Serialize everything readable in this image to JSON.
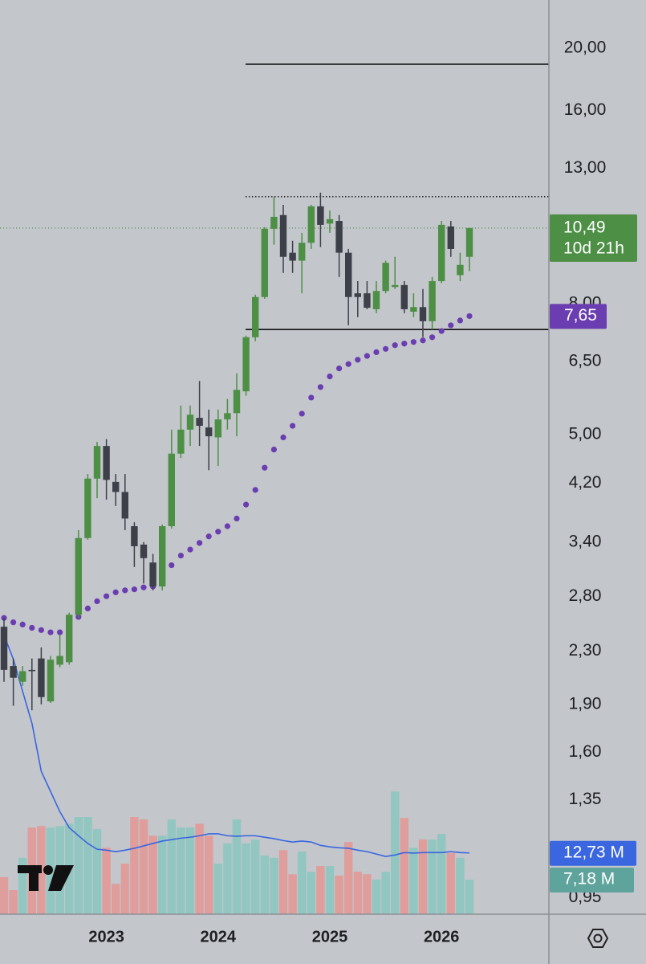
{
  "chart_data": {
    "type": "candlestick",
    "categories": [
      null,
      null,
      null,
      null,
      null,
      null,
      null,
      null,
      null,
      null,
      null,
      "2023",
      null,
      null,
      null,
      null,
      null,
      null,
      null,
      null,
      null,
      null,
      null,
      "2024",
      null,
      null,
      null,
      null,
      null,
      null,
      null,
      null,
      null,
      null,
      null,
      "2025",
      null,
      null,
      null,
      null,
      null,
      null,
      null,
      null,
      null,
      null,
      null,
      "2026",
      null,
      null,
      null
    ],
    "open": [
      2.51,
      2.18,
      2.06,
      2.15,
      2.24,
      1.92,
      2.19,
      2.21,
      2.62,
      3.45,
      4.27,
      4.8,
      4.22,
      4.07,
      3.6,
      3.37,
      3.16,
      2.9,
      3.6,
      4.67,
      5.09,
      5.31,
      5.13,
      4.95,
      5.28,
      5.4,
      5.84,
      7.09,
      8.19,
      10.46,
      10.99,
      9.6,
      9.33,
      9.95,
      11.34,
      10.66,
      10.76,
      9.6,
      8.3,
      8.3,
      7.84,
      8.37,
      8.49,
      8.55,
      7.77,
      7.9,
      7.51,
      8.67,
      10.55,
      8.86,
      9.46
    ],
    "high": [
      2.59,
      2.24,
      2.18,
      2.24,
      2.33,
      2.26,
      2.44,
      2.64,
      3.55,
      4.34,
      4.87,
      4.92,
      4.34,
      4.34,
      3.65,
      3.4,
      3.26,
      3.62,
      5.09,
      5.55,
      5.55,
      6.06,
      5.47,
      5.47,
      5.68,
      6.23,
      7.13,
      8.26,
      10.52,
      11.74,
      11.4,
      10.02,
      10.31,
      11.4,
      11.91,
      11.17,
      10.99,
      9.73,
      8.67,
      8.67,
      8.67,
      9.33,
      9.46,
      8.67,
      8.3,
      8.43,
      8.8,
      10.76,
      10.76,
      9.6,
      10.49
    ],
    "low": [
      2.06,
      1.89,
      2.03,
      1.86,
      1.9,
      1.91,
      2.17,
      2.19,
      2.59,
      3.43,
      3.98,
      3.96,
      3.87,
      3.55,
      3.11,
      2.93,
      2.86,
      2.86,
      3.57,
      4.6,
      4.8,
      4.8,
      4.4,
      4.47,
      5.09,
      4.97,
      5.75,
      6.99,
      8.14,
      9.88,
      8.93,
      8.93,
      8.3,
      9.73,
      9.8,
      10.31,
      8.8,
      7.4,
      7.62,
      7.84,
      7.73,
      8.3,
      8.43,
      7.73,
      7.62,
      7.09,
      7.29,
      8.61,
      9.46,
      8.67,
      8.99
    ],
    "close": [
      2.15,
      2.09,
      2.14,
      2.14,
      1.95,
      2.23,
      2.26,
      2.62,
      3.45,
      4.27,
      4.8,
      4.25,
      4.07,
      3.7,
      3.35,
      3.21,
      2.9,
      3.6,
      4.67,
      5.09,
      5.37,
      5.16,
      4.97,
      5.28,
      5.4,
      5.87,
      7.09,
      8.19,
      10.46,
      10.92,
      9.46,
      9.33,
      9.95,
      11.34,
      10.61,
      10.83,
      9.6,
      8.19,
      8.19,
      7.88,
      8.37,
      9.26,
      8.55,
      7.84,
      7.9,
      7.51,
      8.67,
      10.61,
      9.73,
      9.19,
      10.49
    ],
    "up_color": "#4d8f45",
    "down_color": "#3d4049",
    "sar": [
      2.59,
      2.55,
      2.53,
      2.5,
      2.48,
      2.46,
      2.46,
      2.55,
      2.6,
      2.68,
      2.75,
      2.8,
      2.84,
      2.86,
      2.87,
      2.89,
      2.9,
      3.03,
      3.13,
      3.24,
      3.31,
      3.39,
      3.47,
      3.53,
      3.6,
      3.7,
      3.89,
      4.1,
      4.44,
      4.74,
      4.95,
      5.16,
      5.39,
      5.71,
      5.93,
      6.16,
      6.34,
      6.44,
      6.54,
      6.63,
      6.72,
      6.8,
      6.89,
      6.93,
      6.97,
      7.01,
      7.09,
      7.25,
      7.4,
      7.53,
      7.65
    ],
    "sar_color": "#6a3db0",
    "volume": [
      7.7,
      5.0,
      11.7,
      18,
      18.3,
      18,
      18.3,
      18.8,
      20.2,
      20.2,
      17.7,
      13.8,
      6.3,
      10.5,
      20.2,
      19.7,
      16.3,
      16.3,
      19.7,
      18,
      18,
      18.8,
      16.3,
      10.5,
      14.7,
      19.7,
      14.7,
      15.5,
      12.2,
      11.7,
      13.3,
      8.3,
      13,
      8.8,
      10,
      10,
      8,
      15,
      8.8,
      8.3,
      7.2,
      8.8,
      25.5,
      20,
      13.8,
      15.5,
      15.5,
      16.7,
      12.7,
      11.7,
      7.18
    ],
    "volume_up_color": "#8cc5c0",
    "volume_down_color": "#e29896",
    "volume_ma": [
      58,
      53,
      46.3,
      39.7,
      29.7,
      25.5,
      21.3,
      18,
      16.3,
      14.7,
      13.5,
      13.3,
      13,
      13.3,
      13.7,
      14.2,
      14.7,
      15.2,
      15.5,
      15.8,
      16,
      16.3,
      16.7,
      16.7,
      16.3,
      16.2,
      16.3,
      16.3,
      16,
      15.7,
      15.3,
      15,
      15.2,
      15,
      14.3,
      14,
      13.8,
      13.7,
      13.3,
      13,
      12.5,
      12,
      12.3,
      12.8,
      12.7,
      12.8,
      12.8,
      12.8,
      13,
      12.8,
      12.73
    ],
    "volume_ma_color": "#3a66e0",
    "levels": [
      {
        "value": 18.88,
        "style": "solid"
      },
      {
        "value": 11.74,
        "style": "dotted"
      },
      {
        "value": 7.29,
        "style": "solid"
      }
    ],
    "ylim": [
      0.895,
      23.77
    ],
    "log_scale": true,
    "y2lim": [
      0,
      190
    ],
    "yticks": [
      {
        "value": 20,
        "label": "20,00"
      },
      {
        "value": 16,
        "label": "16,00"
      },
      {
        "value": 13,
        "label": "13,00"
      },
      {
        "value": 8,
        "label": "8,00"
      },
      {
        "value": 6.5,
        "label": "6,50"
      },
      {
        "value": 5,
        "label": "5,00"
      },
      {
        "value": 4.2,
        "label": "4,20"
      },
      {
        "value": 3.4,
        "label": "3,40"
      },
      {
        "value": 2.8,
        "label": "2,80"
      },
      {
        "value": 2.3,
        "label": "2,30"
      },
      {
        "value": 1.9,
        "label": "1,90"
      },
      {
        "value": 1.6,
        "label": "1,60"
      },
      {
        "value": 1.35,
        "label": "1,35"
      },
      {
        "value": 0.95,
        "label": "0,95"
      }
    ],
    "last_price": {
      "value": 10.49,
      "label": "10,49"
    },
    "countdown": "10d 21h",
    "sar_label": {
      "value": 7.65,
      "label": "7,65"
    },
    "volume_ma_label": {
      "value": 12.73,
      "label": "12,73 M"
    },
    "volume_label": {
      "value": 7.18,
      "label": "7,18 M"
    }
  }
}
